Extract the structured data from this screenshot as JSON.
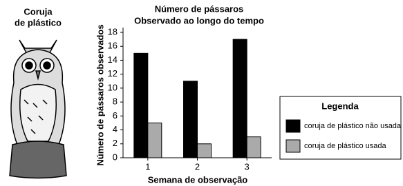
{
  "chart_data": {
    "type": "bar",
    "title": "Número de pássaros",
    "subtitle": "Observado ao longo do tempo",
    "image_caption": [
      "Coruja",
      "de plástico"
    ],
    "x_label": "Semana de observação",
    "y_label": "Número de pássaros observados",
    "categories": [
      "1",
      "2",
      "3"
    ],
    "series": [
      {
        "name": "coruja de plástico não usada",
        "color": "#000000",
        "values": [
          15,
          11,
          17
        ]
      },
      {
        "name": "coruja de plástico usada",
        "color": "#aaaaaa",
        "values": [
          5,
          2,
          3
        ]
      }
    ],
    "ylim": [
      0,
      18
    ],
    "yticks": [
      0,
      2,
      4,
      6,
      8,
      10,
      12,
      14,
      16,
      18
    ],
    "grid": false,
    "legend_title": "Legenda",
    "legend": "right"
  }
}
